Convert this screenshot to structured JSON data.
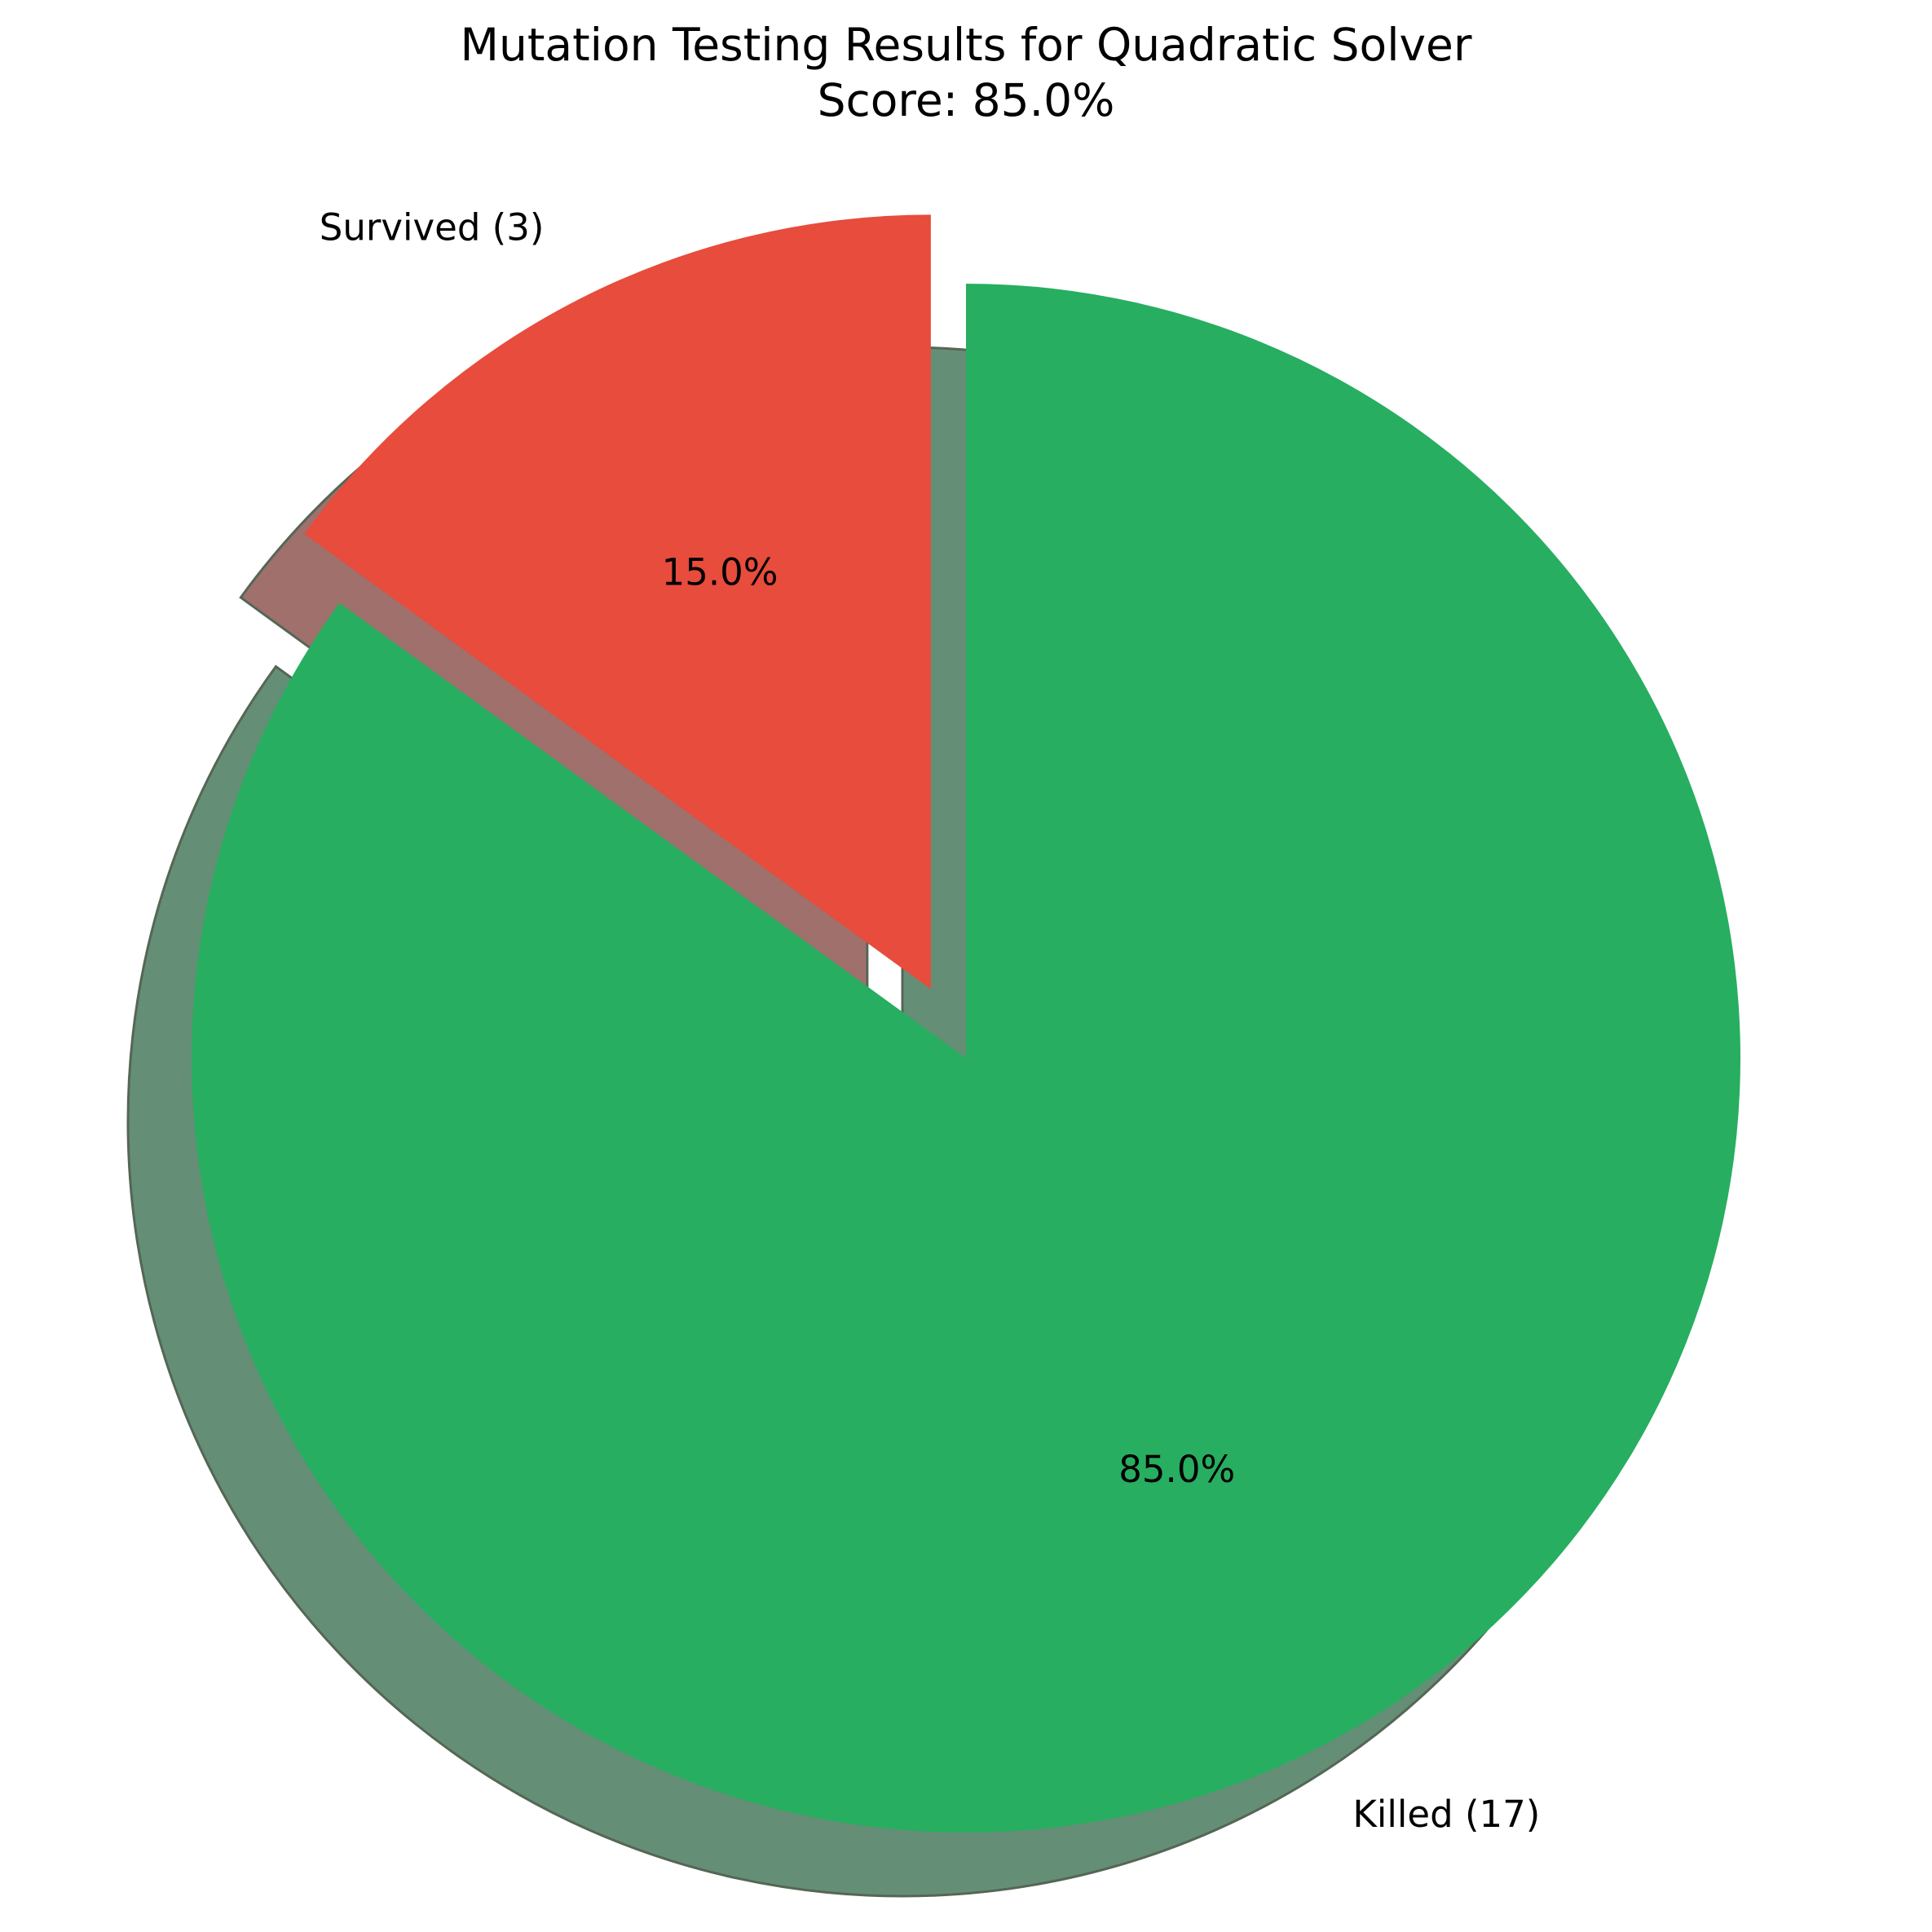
{
  "chart_data": {
    "type": "pie",
    "title": "Mutation Testing Results for Quadratic Solver",
    "subtitle": "Score: 85.0%",
    "slices": [
      {
        "label": "Killed (17)",
        "value": 17,
        "pct_label": "85.0%",
        "color": "#27ae60",
        "exploded": false
      },
      {
        "label": "Survived (3)",
        "value": 3,
        "pct_label": "15.0%",
        "color": "#e74c3c",
        "exploded": true
      }
    ],
    "start_angle_deg": 90,
    "direction": "clockwise",
    "shadow": true,
    "legend": "none"
  }
}
